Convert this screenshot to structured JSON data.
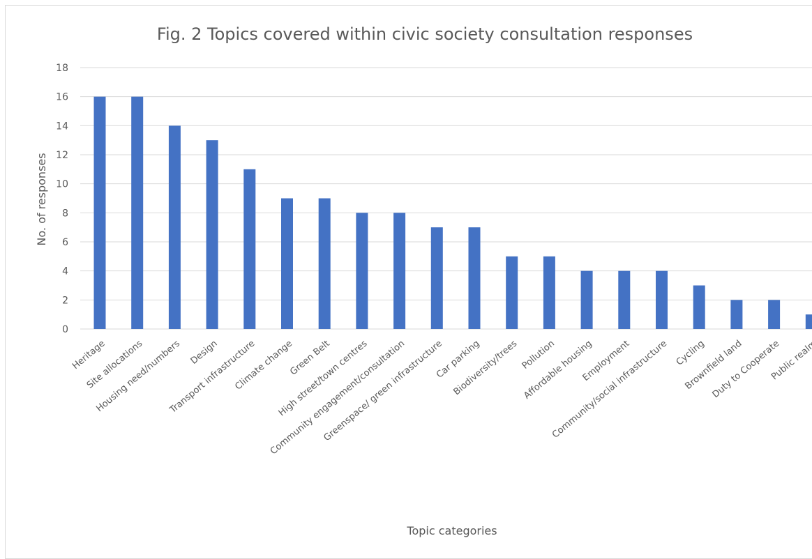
{
  "chart_data": {
    "type": "bar",
    "title": "Fig. 2 Topics covered within civic society consultation responses",
    "xlabel": "Topic categories",
    "ylabel": "No. of responses",
    "ylim": [
      0,
      18
    ],
    "yticks": [
      0,
      2,
      4,
      6,
      8,
      10,
      12,
      14,
      16,
      18
    ],
    "grid": true,
    "legend": "none",
    "bar_color": "#4472c4",
    "categories": [
      "Heritage",
      "Site allocations",
      "Housing need/numbers",
      "Design",
      "Transport infrastructure",
      "Climate change",
      "Green Belt",
      "High street/town centres",
      "Community engagement/consultation",
      "Greenspace/ green infrastructure",
      "Car parking",
      "Biodiversity/trees",
      "Pollution",
      "Affordable housing",
      "Employment",
      "Community/social infrastructure",
      "Cycling",
      "Brownfield land",
      "Duty to Cooperate",
      "Public realm"
    ],
    "values": [
      16,
      16,
      14,
      13,
      11,
      9,
      9,
      8,
      8,
      7,
      7,
      5,
      5,
      4,
      4,
      4,
      3,
      2,
      2,
      1
    ]
  }
}
